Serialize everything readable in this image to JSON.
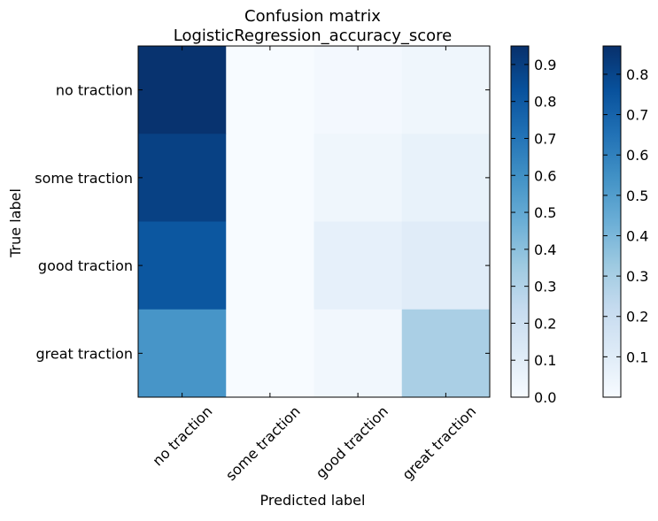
{
  "chart_data": {
    "type": "heatmap",
    "title_line1": "Confusion matrix",
    "title_line2": "LogisticRegression_accuracy_score",
    "xlabel": "Predicted label",
    "ylabel": "True label",
    "x_categories": [
      "no traction",
      "some traction",
      "good traction",
      "great traction"
    ],
    "y_categories": [
      "no traction",
      "some traction",
      "good traction",
      "great traction"
    ],
    "values": [
      [
        0.94,
        0.0,
        0.02,
        0.04
      ],
      [
        0.89,
        0.0,
        0.04,
        0.07
      ],
      [
        0.81,
        0.0,
        0.08,
        0.11
      ],
      [
        0.58,
        0.0,
        0.03,
        0.32
      ]
    ],
    "colormap": "Blues",
    "grid": false,
    "colorbar1": {
      "range": [
        0.0,
        0.95
      ],
      "ticks": [
        "0.0",
        "0.1",
        "0.2",
        "0.3",
        "0.4",
        "0.5",
        "0.6",
        "0.7",
        "0.8",
        "0.9"
      ]
    },
    "colorbar2": {
      "range": [
        0.0,
        0.87
      ],
      "ticks": [
        "0.1",
        "0.2",
        "0.3",
        "0.4",
        "0.5",
        "0.6",
        "0.7",
        "0.8"
      ]
    }
  }
}
